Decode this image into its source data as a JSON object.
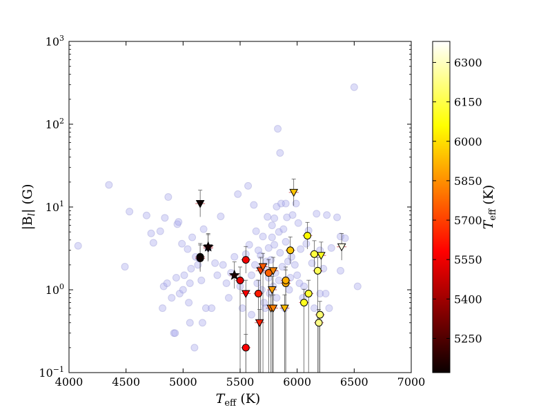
{
  "chart_data": {
    "type": "scatter",
    "xlabel_main": "T",
    "xlabel_sub": "eff",
    "xlabel_unit": "(K)",
    "ylabel_main": "|B",
    "ylabel_sub": "l",
    "ylabel_unit": "| (G)",
    "xlim": [
      4000,
      7000
    ],
    "ylim": [
      0.1,
      1000
    ],
    "yscale": "log",
    "grid": false,
    "x_ticks": [
      "4000",
      "4500",
      "5000",
      "5500",
      "6000",
      "6500",
      "7000"
    ],
    "x_tick_values": [
      4000,
      4500,
      5000,
      5500,
      6000,
      6500,
      7000
    ],
    "y_ticks": [
      {
        "value": 0.1,
        "base": "10",
        "exp": "−1"
      },
      {
        "value": 1,
        "base": "10",
        "exp": "0"
      },
      {
        "value": 10,
        "base": "10",
        "exp": "1"
      },
      {
        "value": 100,
        "base": "10",
        "exp": "2"
      },
      {
        "value": 1000,
        "base": "10",
        "exp": "3"
      }
    ],
    "colorbar": {
      "label_main": "T",
      "label_sub": "eff",
      "label_unit": "(K)",
      "range": [
        5120,
        6380
      ],
      "ticks": [
        "5250",
        "5400",
        "5550",
        "5700",
        "5850",
        "6000",
        "6150",
        "6300"
      ],
      "tick_values": [
        5250,
        5400,
        5550,
        5700,
        5850,
        6000,
        6150,
        6300
      ],
      "colormap": "hot"
    },
    "background_points": [
      [
        4080,
        3.4
      ],
      [
        4350,
        18.5
      ],
      [
        4490,
        1.9
      ],
      [
        4530,
        8.8
      ],
      [
        4680,
        7.9
      ],
      [
        4720,
        4.8
      ],
      [
        4740,
        3.7
      ],
      [
        4800,
        5.1
      ],
      [
        4820,
        0.6
      ],
      [
        4830,
        1.1
      ],
      [
        4840,
        7.4
      ],
      [
        4860,
        1.2
      ],
      [
        4870,
        13.2
      ],
      [
        4900,
        0.8
      ],
      [
        4920,
        0.3
      ],
      [
        4930,
        0.3
      ],
      [
        4940,
        1.4
      ],
      [
        4950,
        6.2
      ],
      [
        4960,
        6.6
      ],
      [
        4970,
        0.9
      ],
      [
        4990,
        3.6
      ],
      [
        5000,
        1.0
      ],
      [
        5010,
        1.5
      ],
      [
        5040,
        3.1
      ],
      [
        5050,
        0.7
      ],
      [
        5060,
        0.4
      ],
      [
        5060,
        1.2
      ],
      [
        5070,
        1.8
      ],
      [
        5080,
        4.3
      ],
      [
        5100,
        0.2
      ],
      [
        5110,
        2.5
      ],
      [
        5130,
        2.0
      ],
      [
        5140,
        2.4
      ],
      [
        5160,
        1.3
      ],
      [
        5170,
        0.4
      ],
      [
        5180,
        5.4
      ],
      [
        5200,
        0.6
      ],
      [
        5220,
        3.2
      ],
      [
        5250,
        0.6
      ],
      [
        5280,
        2.1
      ],
      [
        5300,
        1.5
      ],
      [
        5330,
        7.7
      ],
      [
        5350,
        2.0
      ],
      [
        5380,
        1.2
      ],
      [
        5400,
        0.8
      ],
      [
        5420,
        1.6
      ],
      [
        5450,
        2.5
      ],
      [
        5480,
        14.3
      ],
      [
        5500,
        1.1
      ],
      [
        5520,
        0.6
      ],
      [
        5550,
        2.7
      ],
      [
        5570,
        18.0
      ],
      [
        5580,
        3.5
      ],
      [
        5600,
        1.5
      ],
      [
        5600,
        0.5
      ],
      [
        5620,
        10.6
      ],
      [
        5630,
        2.0
      ],
      [
        5640,
        5.1
      ],
      [
        5650,
        1.2
      ],
      [
        5660,
        3.0
      ],
      [
        5680,
        2.6
      ],
      [
        5690,
        1.0
      ],
      [
        5700,
        4.4
      ],
      [
        5710,
        1.8
      ],
      [
        5710,
        0.7
      ],
      [
        5720,
        0.6
      ],
      [
        5730,
        2.2
      ],
      [
        5740,
        7.6
      ],
      [
        5750,
        1.4
      ],
      [
        5750,
        3.2
      ],
      [
        5760,
        0.9
      ],
      [
        5770,
        2.3
      ],
      [
        5780,
        4.3
      ],
      [
        5780,
        6.0
      ],
      [
        5790,
        1.1
      ],
      [
        5800,
        3.5
      ],
      [
        5800,
        7.3
      ],
      [
        5810,
        1.6
      ],
      [
        5820,
        0.8
      ],
      [
        5820,
        10.1
      ],
      [
        5830,
        88.0
      ],
      [
        5840,
        5.0
      ],
      [
        5840,
        1.3
      ],
      [
        5850,
        45.0
      ],
      [
        5850,
        2.8
      ],
      [
        5860,
        11.0
      ],
      [
        5870,
        1.9
      ],
      [
        5880,
        5.4
      ],
      [
        5890,
        0.6
      ],
      [
        5900,
        3.8
      ],
      [
        5900,
        11.0
      ],
      [
        5910,
        7.5
      ],
      [
        5920,
        2.2
      ],
      [
        5930,
        1.0
      ],
      [
        5940,
        1.4
      ],
      [
        5950,
        2.5
      ],
      [
        5960,
        8.0
      ],
      [
        5980,
        2.0
      ],
      [
        5990,
        11.0
      ],
      [
        6000,
        1.5
      ],
      [
        6010,
        6.4
      ],
      [
        6020,
        1.2
      ],
      [
        6030,
        3.1
      ],
      [
        6050,
        0.8
      ],
      [
        6060,
        1.1
      ],
      [
        6080,
        3.6
      ],
      [
        6100,
        0.9
      ],
      [
        6100,
        5.2
      ],
      [
        6130,
        2.1
      ],
      [
        6150,
        0.6
      ],
      [
        6170,
        8.3
      ],
      [
        6200,
        3.0
      ],
      [
        6200,
        0.9
      ],
      [
        6230,
        1.8
      ],
      [
        6250,
        0.9
      ],
      [
        6260,
        8.0
      ],
      [
        6280,
        0.6
      ],
      [
        6300,
        3.2
      ],
      [
        6350,
        7.5
      ],
      [
        6380,
        4.4
      ],
      [
        6380,
        1.7
      ],
      [
        6420,
        4.2
      ],
      [
        6500,
        280.0
      ],
      [
        6530,
        1.1
      ]
    ],
    "detections": [
      {
        "x": 5150,
        "y": 2.5,
        "teff": 5130,
        "marker": "circle"
      },
      {
        "x": 5150,
        "y": 2.4,
        "teff": 5130,
        "marker": "circle"
      },
      {
        "x": 5550,
        "y": 2.3,
        "teff": 5540,
        "marker": "circle"
      },
      {
        "x": 5500,
        "y": 1.3,
        "teff": 5520,
        "marker": "circle"
      },
      {
        "x": 5550,
        "y": 0.2,
        "teff": 5560,
        "marker": "circle"
      },
      {
        "x": 5660,
        "y": 0.9,
        "teff": 5630,
        "marker": "circle"
      },
      {
        "x": 5750,
        "y": 1.6,
        "teff": 5760,
        "marker": "circle"
      },
      {
        "x": 5900,
        "y": 1.2,
        "teff": 5900,
        "marker": "circle"
      },
      {
        "x": 5900,
        "y": 1.3,
        "teff": 5910,
        "marker": "circle"
      },
      {
        "x": 5940,
        "y": 3.0,
        "teff": 5950,
        "marker": "circle"
      },
      {
        "x": 6060,
        "y": 0.7,
        "teff": 6100,
        "marker": "circle"
      },
      {
        "x": 6090,
        "y": 4.5,
        "teff": 6050,
        "marker": "circle"
      },
      {
        "x": 6100,
        "y": 0.9,
        "teff": 6120,
        "marker": "circle"
      },
      {
        "x": 6150,
        "y": 2.7,
        "teff": 6140,
        "marker": "circle"
      },
      {
        "x": 6180,
        "y": 1.7,
        "teff": 6170,
        "marker": "circle"
      },
      {
        "x": 6200,
        "y": 0.5,
        "teff": 6200,
        "marker": "circle"
      },
      {
        "x": 6190,
        "y": 0.4,
        "teff": 6230,
        "marker": "circle"
      },
      {
        "x": 5450,
        "y": 1.5,
        "teff": 5150,
        "marker": "star"
      },
      {
        "x": 5220,
        "y": 3.3,
        "teff": 5140,
        "marker": "star"
      }
    ],
    "upper_limits": [
      {
        "x": 5150,
        "y": 11.0,
        "teff": 5130
      },
      {
        "x": 5220,
        "y": 3.2,
        "teff": 5140
      },
      {
        "x": 5550,
        "y": 0.9,
        "teff": 5570
      },
      {
        "x": 5670,
        "y": 0.4,
        "teff": 5640
      },
      {
        "x": 5680,
        "y": 1.7,
        "teff": 5690
      },
      {
        "x": 5700,
        "y": 1.9,
        "teff": 5750
      },
      {
        "x": 5770,
        "y": 0.6,
        "teff": 5800
      },
      {
        "x": 5790,
        "y": 0.6,
        "teff": 5820
      },
      {
        "x": 5780,
        "y": 1.0,
        "teff": 5880
      },
      {
        "x": 5790,
        "y": 1.7,
        "teff": 5830
      },
      {
        "x": 5890,
        "y": 0.6,
        "teff": 5930
      },
      {
        "x": 5970,
        "y": 15.0,
        "teff": 5950
      },
      {
        "x": 6210,
        "y": 2.6,
        "teff": 6100
      },
      {
        "x": 6390,
        "y": 3.3,
        "teff": 6350
      }
    ]
  }
}
